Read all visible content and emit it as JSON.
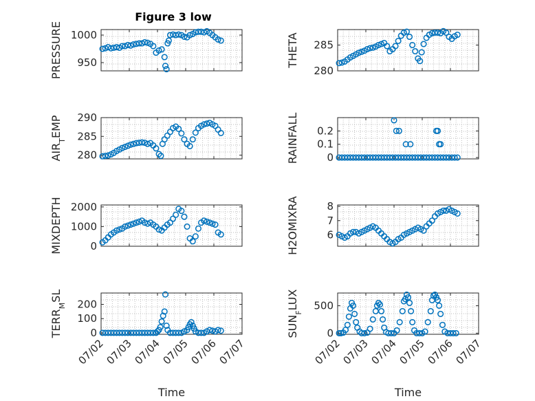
{
  "figure_title": "Figure 3 low",
  "marker_color": "#0072bd",
  "x_tick_labels": [
    "07/02",
    "07/03",
    "07/04",
    "07/05",
    "07/06",
    "07/07"
  ],
  "x_label": "Time",
  "chart_data": [
    {
      "type": "scatter",
      "title": "Figure 3 low",
      "ylabel": "PRESSURE",
      "xlim": [
        0,
        5
      ],
      "ylim": [
        935,
        1010
      ],
      "yticks": [
        950,
        1000
      ],
      "grid": true,
      "x": [
        0.05,
        0.15,
        0.25,
        0.35,
        0.45,
        0.55,
        0.65,
        0.75,
        0.85,
        0.95,
        1.05,
        1.15,
        1.25,
        1.35,
        1.45,
        1.55,
        1.65,
        1.75,
        1.85,
        1.95,
        2.05,
        2.15,
        2.25,
        2.28,
        2.32,
        2.36,
        2.4,
        2.45,
        2.55,
        2.65,
        2.75,
        2.85,
        2.95,
        3.05,
        3.15,
        3.25,
        3.35,
        3.45,
        3.55,
        3.65,
        3.75,
        3.85,
        3.95,
        4.05,
        4.15,
        4.25
      ],
      "y": [
        975,
        976,
        978,
        976,
        977,
        978,
        977,
        980,
        980,
        982,
        981,
        983,
        984,
        985,
        985,
        987,
        986,
        984,
        980,
        968,
        972,
        974,
        960,
        944,
        938,
        985,
        990,
        1000,
        1001,
        1000,
        1001,
        1000,
        997,
        996,
        1000,
        1002,
        1005,
        1006,
        1006,
        1005,
        1007,
        1004,
        1000,
        996,
        992,
        990
      ]
    },
    {
      "type": "scatter",
      "ylabel": "THETA",
      "xlim": [
        0,
        5
      ],
      "ylim": [
        280,
        288
      ],
      "yticks": [
        280,
        285
      ],
      "grid": true,
      "x": [
        0.05,
        0.15,
        0.25,
        0.35,
        0.45,
        0.55,
        0.65,
        0.75,
        0.85,
        0.95,
        1.05,
        1.15,
        1.25,
        1.35,
        1.45,
        1.55,
        1.65,
        1.75,
        1.85,
        1.95,
        2.05,
        2.15,
        2.25,
        2.35,
        2.45,
        2.55,
        2.65,
        2.75,
        2.85,
        2.92,
        2.98,
        3.05,
        3.15,
        3.25,
        3.35,
        3.45,
        3.55,
        3.65,
        3.75,
        3.85,
        3.95,
        4.05,
        4.15,
        4.25
      ],
      "y": [
        281.5,
        281.6,
        281.8,
        282.2,
        282.6,
        282.9,
        283.2,
        283.5,
        283.7,
        283.9,
        284.2,
        284.4,
        284.5,
        284.7,
        285.0,
        285.2,
        285.4,
        284.8,
        283.8,
        284.2,
        284.8,
        285.8,
        286.8,
        287.4,
        287.6,
        286.6,
        285.0,
        283.8,
        282.4,
        281.9,
        283.6,
        285.2,
        286.4,
        287.0,
        287.3,
        287.4,
        287.4,
        287.3,
        287.7,
        287.4,
        286.6,
        286.2,
        286.7,
        287.0
      ]
    },
    {
      "type": "scatter",
      "ylabel": "AIR_TEMP",
      "xlim": [
        0,
        5
      ],
      "ylim": [
        279,
        290
      ],
      "yticks": [
        280,
        285,
        290
      ],
      "grid": true,
      "x": [
        0.05,
        0.15,
        0.25,
        0.35,
        0.45,
        0.55,
        0.65,
        0.75,
        0.85,
        0.95,
        1.05,
        1.15,
        1.25,
        1.35,
        1.45,
        1.55,
        1.65,
        1.75,
        1.85,
        1.95,
        2.05,
        2.12,
        2.18,
        2.25,
        2.35,
        2.45,
        2.55,
        2.65,
        2.75,
        2.85,
        2.95,
        3.05,
        3.15,
        3.25,
        3.35,
        3.45,
        3.55,
        3.65,
        3.75,
        3.85,
        3.95,
        4.05,
        4.15,
        4.25
      ],
      "y": [
        279.7,
        279.8,
        279.9,
        280.2,
        280.6,
        281.1,
        281.5,
        281.9,
        282.2,
        282.5,
        282.8,
        283.0,
        283.2,
        283.3,
        283.4,
        283.3,
        283.0,
        283.2,
        282.6,
        281.8,
        280.3,
        279.8,
        283.0,
        284.2,
        285.2,
        286.2,
        287.2,
        287.6,
        287.0,
        285.8,
        284.2,
        283.0,
        282.4,
        284.2,
        286.0,
        287.2,
        287.8,
        288.2,
        288.4,
        288.6,
        288.2,
        287.8,
        286.8,
        285.9
      ]
    },
    {
      "type": "scatter",
      "ylabel": "RAINFALL",
      "xlim": [
        0,
        5
      ],
      "ylim": [
        -0.01,
        0.3
      ],
      "yticks": [
        0,
        0.1,
        0.2
      ],
      "grid": true,
      "x": [
        0.05,
        0.15,
        0.25,
        0.35,
        0.45,
        0.55,
        0.65,
        0.75,
        0.85,
        0.95,
        1.05,
        1.15,
        1.25,
        1.35,
        1.45,
        1.55,
        1.65,
        1.75,
        1.85,
        1.95,
        2.05,
        2.15,
        2.25,
        2.35,
        2.45,
        2.55,
        2.65,
        2.75,
        2.85,
        2.95,
        3.05,
        3.15,
        3.25,
        3.35,
        3.45,
        3.55,
        3.65,
        3.75,
        3.85,
        3.95,
        4.05,
        4.15,
        4.25,
        2.0,
        2.08,
        2.18,
        2.42,
        2.58,
        3.5,
        3.55,
        3.6,
        3.65
      ],
      "y": [
        0,
        0,
        0,
        0,
        0,
        0,
        0,
        0,
        0,
        0,
        0,
        0,
        0,
        0,
        0,
        0,
        0,
        0,
        0,
        0,
        0,
        0,
        0,
        0,
        0,
        0,
        0,
        0,
        0,
        0,
        0,
        0,
        0,
        0,
        0,
        0,
        0,
        0,
        0,
        0,
        0,
        0,
        0,
        0.28,
        0.2,
        0.2,
        0.1,
        0.1,
        0.2,
        0.2,
        0.1,
        0.1
      ]
    },
    {
      "type": "scatter",
      "ylabel": "MIXDEPTH",
      "xlim": [
        0,
        5
      ],
      "ylim": [
        0,
        2100
      ],
      "yticks": [
        0,
        1000,
        2000
      ],
      "grid": true,
      "x": [
        0.05,
        0.15,
        0.25,
        0.35,
        0.45,
        0.55,
        0.65,
        0.75,
        0.85,
        0.95,
        1.05,
        1.15,
        1.25,
        1.35,
        1.45,
        1.55,
        1.65,
        1.75,
        1.85,
        1.95,
        2.05,
        2.15,
        2.25,
        2.35,
        2.45,
        2.55,
        2.65,
        2.75,
        2.85,
        2.95,
        3.05,
        3.15,
        3.25,
        3.35,
        3.45,
        3.55,
        3.65,
        3.75,
        3.85,
        3.95,
        4.05,
        4.15,
        4.25
      ],
      "y": [
        200,
        300,
        450,
        600,
        700,
        800,
        850,
        900,
        1000,
        1050,
        1100,
        1150,
        1200,
        1250,
        1300,
        1200,
        1150,
        1200,
        1100,
        1000,
        850,
        800,
        950,
        1100,
        1200,
        1400,
        1600,
        1900,
        1800,
        1500,
        1000,
        400,
        250,
        500,
        900,
        1200,
        1300,
        1250,
        1200,
        1150,
        1100,
        700,
        600
      ]
    },
    {
      "type": "scatter",
      "ylabel": "H2OMIXRA",
      "xlim": [
        0,
        5
      ],
      "ylim": [
        5.2,
        8.1
      ],
      "yticks": [
        6,
        7,
        8
      ],
      "grid": true,
      "x": [
        0.05,
        0.15,
        0.25,
        0.35,
        0.45,
        0.55,
        0.65,
        0.75,
        0.85,
        0.95,
        1.05,
        1.15,
        1.25,
        1.35,
        1.45,
        1.55,
        1.65,
        1.75,
        1.85,
        1.95,
        2.05,
        2.15,
        2.25,
        2.35,
        2.45,
        2.55,
        2.65,
        2.75,
        2.85,
        2.95,
        3.05,
        3.15,
        3.25,
        3.35,
        3.45,
        3.55,
        3.65,
        3.75,
        3.85,
        3.95,
        4.05,
        4.15,
        4.25
      ],
      "y": [
        6.0,
        5.9,
        5.8,
        5.9,
        6.1,
        6.2,
        6.2,
        6.1,
        6.2,
        6.3,
        6.4,
        6.5,
        6.6,
        6.5,
        6.3,
        6.1,
        5.9,
        5.7,
        5.5,
        5.4,
        5.5,
        5.7,
        5.8,
        6.0,
        6.1,
        6.2,
        6.3,
        6.4,
        6.5,
        6.4,
        6.3,
        6.6,
        6.8,
        7.0,
        7.3,
        7.5,
        7.6,
        7.7,
        7.7,
        7.8,
        7.7,
        7.6,
        7.5
      ]
    },
    {
      "type": "scatter",
      "ylabel": "TERR_MSL",
      "xlim": [
        0,
        5
      ],
      "ylim": [
        -10,
        280
      ],
      "yticks": [
        0,
        100,
        200
      ],
      "grid": true,
      "x": [
        0.05,
        0.15,
        0.25,
        0.35,
        0.45,
        0.55,
        0.65,
        0.75,
        0.85,
        0.95,
        1.05,
        1.15,
        1.25,
        1.35,
        1.45,
        1.55,
        1.65,
        1.75,
        1.85,
        1.95,
        2.0,
        2.05,
        2.1,
        2.15,
        2.2,
        2.25,
        2.28,
        2.32,
        2.36,
        2.45,
        2.55,
        2.65,
        2.75,
        2.85,
        2.95,
        3.05,
        3.1,
        3.15,
        3.2,
        3.25,
        3.3,
        3.35,
        3.45,
        3.55,
        3.65,
        3.75,
        3.85,
        3.95,
        4.05,
        4.15,
        4.25
      ],
      "y": [
        0,
        0,
        0,
        0,
        0,
        0,
        0,
        0,
        0,
        0,
        0,
        0,
        0,
        0,
        0,
        0,
        0,
        0,
        0,
        0,
        10,
        20,
        40,
        80,
        120,
        150,
        270,
        50,
        20,
        0,
        0,
        0,
        0,
        0,
        10,
        20,
        40,
        60,
        75,
        50,
        30,
        10,
        0,
        0,
        0,
        10,
        20,
        15,
        10,
        20,
        15
      ]
    },
    {
      "type": "scatter",
      "ylabel": "SUN_FLUX",
      "xlim": [
        0,
        5
      ],
      "ylim": [
        -20,
        730
      ],
      "yticks": [
        0,
        500
      ],
      "grid": true,
      "x": [
        0.05,
        0.12,
        0.2,
        0.28,
        0.35,
        0.4,
        0.45,
        0.5,
        0.55,
        0.6,
        0.65,
        0.7,
        0.78,
        0.85,
        0.95,
        1.05,
        1.15,
        1.25,
        1.35,
        1.4,
        1.45,
        1.5,
        1.55,
        1.6,
        1.65,
        1.72,
        1.8,
        1.9,
        2.0,
        2.1,
        2.2,
        2.3,
        2.35,
        2.4,
        2.45,
        2.5,
        2.55,
        2.6,
        2.65,
        2.72,
        2.8,
        2.9,
        3.0,
        3.1,
        3.2,
        3.3,
        3.35,
        3.4,
        3.45,
        3.5,
        3.55,
        3.6,
        3.65,
        3.72,
        3.8,
        3.9,
        4.0,
        4.1,
        4.2
      ],
      "y": [
        0,
        0,
        10,
        60,
        150,
        300,
        450,
        550,
        500,
        350,
        200,
        100,
        30,
        0,
        0,
        10,
        80,
        250,
        400,
        500,
        550,
        520,
        400,
        250,
        100,
        20,
        0,
        0,
        0,
        50,
        200,
        400,
        580,
        620,
        700,
        650,
        550,
        400,
        200,
        50,
        0,
        0,
        0,
        30,
        200,
        400,
        600,
        680,
        700,
        650,
        600,
        500,
        350,
        150,
        30,
        0,
        0,
        0,
        0
      ]
    }
  ]
}
